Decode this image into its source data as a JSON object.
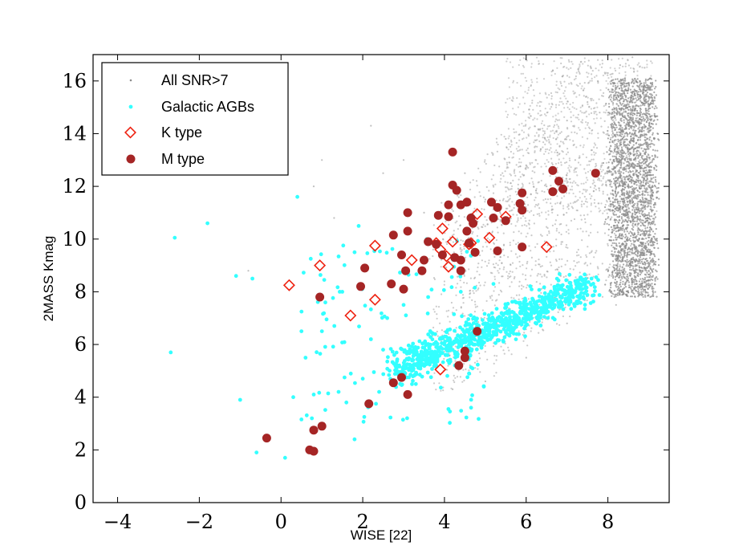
{
  "chart_data": {
    "type": "scatter",
    "title": "",
    "xlabel": "WISE [22]",
    "ylabel": "2MASS Kmag",
    "xlim": [
      -4.6,
      9.5
    ],
    "ylim": [
      0,
      17
    ],
    "x_ticks": [
      -4,
      -2,
      0,
      2,
      4,
      6,
      8
    ],
    "x_tick_labels": [
      "−4",
      "−2",
      "0",
      "2",
      "4",
      "6",
      "8"
    ],
    "y_ticks": [
      0,
      2,
      4,
      6,
      8,
      10,
      12,
      14,
      16
    ],
    "y_tick_labels": [
      "0",
      "2",
      "4",
      "6",
      "8",
      "10",
      "12",
      "14",
      "16"
    ],
    "grid": false,
    "legend_position": "top-left",
    "colors": {
      "all": "#8c8c8c",
      "agb": "#33ffff",
      "k_type": "#ee2211",
      "m_type": "#a52525"
    },
    "series": [
      {
        "name": "All SNR>7",
        "marker": "point",
        "description": "dense cloud of field sources concentrated at WISE[22] 8-9.2, Kmag 8-16, with a diagonal lower envelope from (3.6,4) to (8.5,9)",
        "values": [
          [
            0.8,
            12.0
          ],
          [
            1.3,
            10.8
          ],
          [
            2.2,
            14.3
          ],
          [
            3.0,
            13.0
          ],
          [
            3.5,
            11.0
          ],
          [
            4.5,
            12.5
          ],
          [
            5.0,
            11.5
          ],
          [
            5.5,
            13.8
          ],
          [
            6.0,
            12.8
          ],
          [
            6.5,
            12.0
          ],
          [
            7.0,
            14.5
          ],
          [
            7.2,
            13.0
          ],
          [
            7.5,
            15.2
          ],
          [
            7.8,
            14.8
          ],
          [
            8.0,
            16.3
          ],
          [
            8.3,
            16.6
          ],
          [
            8.6,
            16.9
          ],
          [
            8.9,
            16.5
          ],
          [
            9.1,
            15.8
          ],
          [
            8.2,
            7.5
          ],
          [
            8.5,
            9.0
          ],
          [
            7.0,
            6.8
          ],
          [
            6.0,
            5.5
          ],
          [
            5.0,
            4.6
          ],
          [
            4.2,
            4.3
          ],
          [
            -0.8,
            8.8
          ],
          [
            1.0,
            13.0
          ],
          [
            2.5,
            12.5
          ]
        ]
      },
      {
        "name": "Galactic AGBs",
        "marker": "circle-small",
        "values": [
          [
            -2.7,
            5.7
          ],
          [
            -2.6,
            10.05
          ],
          [
            -1.8,
            10.6
          ],
          [
            -1.1,
            8.6
          ],
          [
            -0.7,
            8.5
          ],
          [
            -0.6,
            1.9
          ],
          [
            -1.0,
            3.9
          ],
          [
            0.4,
            11.6
          ],
          [
            0.1,
            1.7
          ],
          [
            0.5,
            6.5
          ],
          [
            0.6,
            5.5
          ],
          [
            0.3,
            4.0
          ],
          [
            1.5,
            8.0
          ],
          [
            1.8,
            9.5
          ],
          [
            1.8,
            2.4
          ],
          [
            1.6,
            3.8
          ],
          [
            2.0,
            4.7
          ],
          [
            2.2,
            6.2
          ],
          [
            2.5,
            5.8
          ],
          [
            2.8,
            5.2
          ],
          [
            3.2,
            5.0
          ],
          [
            3.4,
            5.3
          ],
          [
            3.5,
            5.6
          ],
          [
            3.7,
            5.5
          ],
          [
            3.8,
            5.9
          ],
          [
            3.9,
            5.7
          ],
          [
            4.0,
            6.0
          ],
          [
            4.2,
            5.8
          ],
          [
            4.3,
            6.1
          ],
          [
            4.5,
            6.3
          ],
          [
            4.6,
            6.0
          ],
          [
            4.8,
            6.5
          ],
          [
            5.0,
            6.8
          ],
          [
            5.1,
            6.4
          ],
          [
            5.3,
            7.0
          ],
          [
            5.5,
            6.8
          ],
          [
            5.6,
            7.2
          ],
          [
            5.8,
            7.0
          ],
          [
            6.0,
            7.4
          ],
          [
            6.2,
            7.2
          ],
          [
            6.4,
            7.6
          ],
          [
            6.6,
            7.8
          ],
          [
            6.8,
            7.5
          ],
          [
            7.0,
            8.0
          ],
          [
            7.3,
            8.2
          ],
          [
            7.6,
            8.5
          ],
          [
            2.6,
            7.0
          ],
          [
            3.0,
            7.5
          ],
          [
            3.6,
            7.8
          ],
          [
            4.4,
            8.0
          ],
          [
            5.2,
            8.3
          ],
          [
            1.9,
            10.5
          ],
          [
            1.0,
            6.5
          ],
          [
            2.4,
            4.2
          ],
          [
            3.3,
            4.5
          ],
          [
            4.6,
            4.9
          ]
        ]
      },
      {
        "name": "K type",
        "marker": "diamond-open",
        "values": [
          [
            0.2,
            8.25
          ],
          [
            0.95,
            9.0
          ],
          [
            1.7,
            7.1
          ],
          [
            2.3,
            7.7
          ],
          [
            2.3,
            9.75
          ],
          [
            3.2,
            9.2
          ],
          [
            3.8,
            9.85
          ],
          [
            3.9,
            5.05
          ],
          [
            3.95,
            10.4
          ],
          [
            4.1,
            8.95
          ],
          [
            4.2,
            9.9
          ],
          [
            4.6,
            9.8
          ],
          [
            4.65,
            9.85
          ],
          [
            4.8,
            10.95
          ],
          [
            5.1,
            10.05
          ],
          [
            5.5,
            10.85
          ],
          [
            6.5,
            9.7
          ],
          [
            3.9,
            9.6
          ],
          [
            4.05,
            9.35
          ]
        ]
      },
      {
        "name": "M type",
        "marker": "circle-large",
        "values": [
          [
            -0.35,
            2.45
          ],
          [
            0.7,
            2.0
          ],
          [
            0.8,
            1.95
          ],
          [
            0.8,
            2.75
          ],
          [
            1.0,
            2.9
          ],
          [
            0.95,
            7.8
          ],
          [
            1.95,
            8.2
          ],
          [
            2.05,
            8.9
          ],
          [
            2.15,
            3.75
          ],
          [
            2.7,
            8.3
          ],
          [
            2.75,
            4.55
          ],
          [
            2.75,
            10.15
          ],
          [
            2.95,
            4.75
          ],
          [
            2.95,
            9.4
          ],
          [
            3.0,
            8.1
          ],
          [
            3.05,
            8.8
          ],
          [
            3.1,
            4.1
          ],
          [
            3.1,
            10.3
          ],
          [
            3.1,
            11.0
          ],
          [
            3.45,
            8.8
          ],
          [
            3.5,
            9.2
          ],
          [
            3.6,
            9.9
          ],
          [
            3.8,
            9.8
          ],
          [
            3.85,
            10.9
          ],
          [
            3.95,
            9.4
          ],
          [
            4.1,
            11.3
          ],
          [
            4.1,
            10.85
          ],
          [
            4.2,
            13.3
          ],
          [
            4.2,
            12.05
          ],
          [
            4.25,
            9.3
          ],
          [
            4.3,
            11.85
          ],
          [
            4.35,
            5.2
          ],
          [
            4.4,
            8.8
          ],
          [
            4.4,
            9.2
          ],
          [
            4.4,
            11.3
          ],
          [
            4.5,
            5.5
          ],
          [
            4.5,
            5.75
          ],
          [
            4.55,
            10.3
          ],
          [
            4.55,
            11.4
          ],
          [
            4.6,
            9.85
          ],
          [
            4.65,
            10.8
          ],
          [
            4.7,
            10.6
          ],
          [
            4.75,
            9.5
          ],
          [
            4.8,
            6.5
          ],
          [
            5.15,
            11.4
          ],
          [
            5.2,
            10.8
          ],
          [
            5.3,
            9.55
          ],
          [
            5.3,
            11.2
          ],
          [
            5.5,
            10.7
          ],
          [
            5.9,
            11.75
          ],
          [
            5.85,
            11.35
          ],
          [
            5.9,
            11.1
          ],
          [
            5.9,
            9.7
          ],
          [
            6.65,
            12.6
          ],
          [
            6.65,
            11.8
          ],
          [
            6.8,
            12.2
          ],
          [
            6.9,
            11.9
          ],
          [
            7.7,
            12.5
          ]
        ]
      }
    ]
  }
}
